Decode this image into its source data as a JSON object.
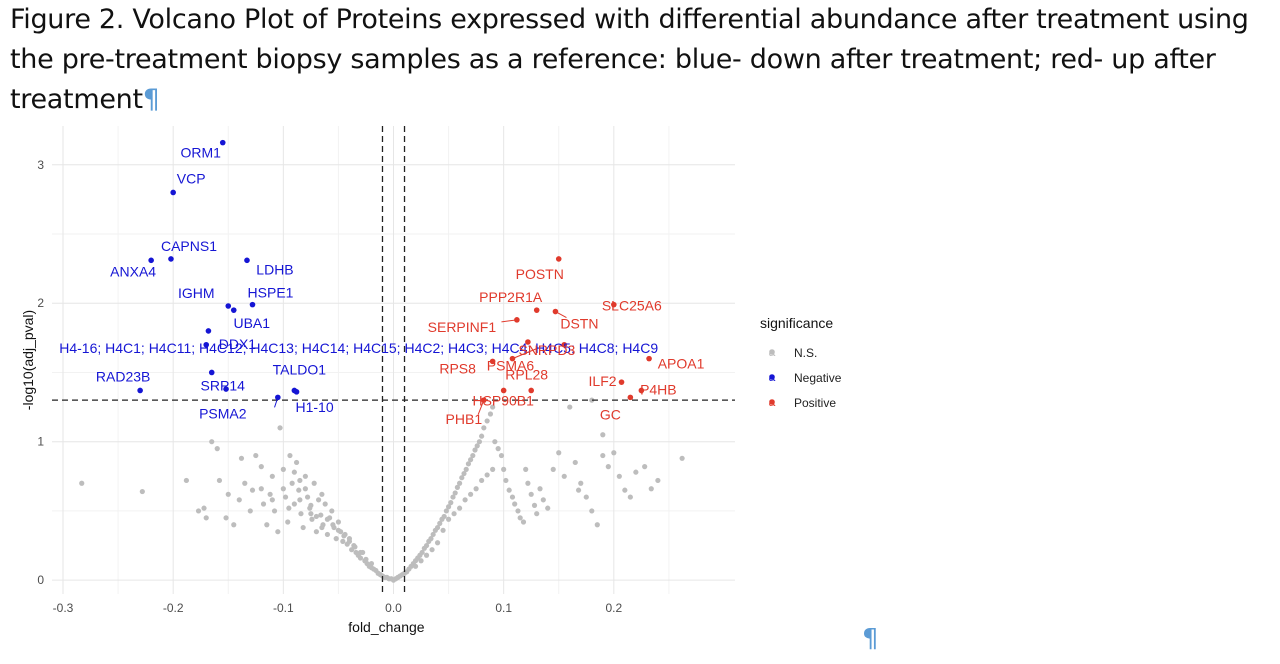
{
  "caption": {
    "text": "Figure 2. Volcano Plot of Proteins expressed with differential abundance after treatment using the pre-treatment biopsy samples as a reference: blue- down after treatment; red- up after treatment",
    "pilcrow": "¶"
  },
  "end_pilcrow": "¶",
  "colors": {
    "ns": "#bdbdbd",
    "negative": "#1515d4",
    "positive": "#e03a2c"
  },
  "chart_data": {
    "type": "scatter",
    "xlabel": "fold_change",
    "ylabel": "-log10(adj_pval)",
    "xlim": [
      -0.3,
      0.3
    ],
    "ylim": [
      0,
      3.2
    ],
    "x_ticks": [
      -0.3,
      -0.2,
      -0.1,
      0,
      0.1,
      0.2
    ],
    "x_tick_labels": [
      "-0.3",
      "-0.2",
      "-0.1",
      "0.0",
      "0.1",
      "0.2"
    ],
    "y_ticks": [
      0,
      1,
      2,
      3
    ],
    "y_tick_labels": [
      "0",
      "1",
      "2",
      "3"
    ],
    "vlines": [
      -0.01,
      0.01
    ],
    "hline": 1.3,
    "grid": true,
    "legend": {
      "title": "significance",
      "placement": "right",
      "items": [
        {
          "label": "N.S.",
          "key": "ns",
          "glyph": "a"
        },
        {
          "label": "Negative",
          "key": "negative",
          "glyph": "a"
        },
        {
          "label": "Positive",
          "key": "positive",
          "glyph": "a"
        }
      ]
    },
    "negative": [
      {
        "label": "ORM1",
        "x": -0.155,
        "y": 3.16
      },
      {
        "label": "VCP",
        "x": -0.2,
        "y": 2.8
      },
      {
        "label": "CAPNS1",
        "x": -0.202,
        "y": 2.32
      },
      {
        "label": "ANXA4",
        "x": -0.22,
        "y": 2.31
      },
      {
        "label": "LDHB",
        "x": -0.133,
        "y": 2.31
      },
      {
        "label": "HSPE1",
        "x": -0.128,
        "y": 1.99
      },
      {
        "label": "UBA1",
        "x": -0.145,
        "y": 1.95
      },
      {
        "label": "IGHM",
        "x": -0.15,
        "y": 1.98
      },
      {
        "label": "DDX1",
        "x": -0.168,
        "y": 1.8
      },
      {
        "label": "H4-16; H4C1; H4C11; H4C12; H4C13; H4C14; H4C15; H4C2; H4C3; H4C4; H4C5; H4C8; H4C9",
        "x": -0.17,
        "y": 1.7
      },
      {
        "label": "SRP14",
        "x": -0.165,
        "y": 1.5
      },
      {
        "label": "RAD23B",
        "x": -0.23,
        "y": 1.37
      },
      {
        "label": "TALDO1",
        "x": -0.09,
        "y": 1.37
      },
      {
        "label": "H1-10",
        "x": -0.088,
        "y": 1.36
      },
      {
        "label": "PSMA2",
        "x": -0.105,
        "y": 1.32
      },
      {
        "label": "",
        "x": -0.152,
        "y": 1.38
      }
    ],
    "positive": [
      {
        "label": "POSTN",
        "x": 0.15,
        "y": 2.32
      },
      {
        "label": "SLC25A6",
        "x": 0.2,
        "y": 1.99
      },
      {
        "label": "PPP2R1A",
        "x": 0.13,
        "y": 1.95
      },
      {
        "label": "DSTN",
        "x": 0.147,
        "y": 1.94
      },
      {
        "label": "SERPINF1",
        "x": 0.112,
        "y": 1.88
      },
      {
        "label": "SNRPD3",
        "x": 0.122,
        "y": 1.72
      },
      {
        "label": "PSMA6",
        "x": 0.108,
        "y": 1.6
      },
      {
        "label": "APOA1",
        "x": 0.232,
        "y": 1.6
      },
      {
        "label": "RPS8",
        "x": 0.09,
        "y": 1.58
      },
      {
        "label": "ILF2",
        "x": 0.207,
        "y": 1.43
      },
      {
        "label": "RPL28",
        "x": 0.1,
        "y": 1.37
      },
      {
        "label": "P4HB",
        "x": 0.225,
        "y": 1.37
      },
      {
        "label": "HSP90B1",
        "x": 0.125,
        "y": 1.37
      },
      {
        "label": "PHB1",
        "x": 0.082,
        "y": 1.3
      },
      {
        "label": "GC",
        "x": 0.215,
        "y": 1.32
      },
      {
        "label": "",
        "x": 0.155,
        "y": 1.7
      }
    ],
    "ns": [
      [
        -0.283,
        0.7
      ],
      [
        -0.228,
        0.64
      ],
      [
        -0.188,
        0.72
      ],
      [
        -0.177,
        0.5
      ],
      [
        -0.172,
        0.52
      ],
      [
        -0.17,
        0.45
      ],
      [
        -0.165,
        1.0
      ],
      [
        -0.16,
        0.95
      ],
      [
        -0.152,
        0.45
      ],
      [
        -0.145,
        0.4
      ],
      [
        -0.138,
        0.88
      ],
      [
        -0.135,
        0.7
      ],
      [
        -0.13,
        0.5
      ],
      [
        -0.128,
        0.65
      ],
      [
        -0.125,
        0.9
      ],
      [
        -0.12,
        0.82
      ],
      [
        -0.118,
        0.55
      ],
      [
        -0.115,
        0.4
      ],
      [
        -0.112,
        0.62
      ],
      [
        -0.11,
        0.75
      ],
      [
        -0.108,
        0.5
      ],
      [
        -0.105,
        0.35
      ],
      [
        -0.103,
        1.1
      ],
      [
        -0.1,
        0.8
      ],
      [
        -0.098,
        0.6
      ],
      [
        -0.096,
        0.42
      ],
      [
        -0.094,
        0.9
      ],
      [
        -0.092,
        0.7
      ],
      [
        -0.09,
        0.55
      ],
      [
        -0.088,
        0.85
      ],
      [
        -0.086,
        0.65
      ],
      [
        -0.084,
        0.48
      ],
      [
        -0.082,
        0.38
      ],
      [
        -0.08,
        0.75
      ],
      [
        -0.078,
        0.6
      ],
      [
        -0.076,
        0.52
      ],
      [
        -0.074,
        0.44
      ],
      [
        -0.072,
        0.7
      ],
      [
        -0.07,
        0.35
      ],
      [
        -0.068,
        0.58
      ],
      [
        -0.066,
        0.47
      ],
      [
        -0.064,
        0.4
      ],
      [
        -0.062,
        0.55
      ],
      [
        -0.06,
        0.33
      ],
      [
        -0.058,
        0.45
      ],
      [
        -0.056,
        0.5
      ],
      [
        -0.054,
        0.38
      ],
      [
        -0.052,
        0.3
      ],
      [
        -0.05,
        0.42
      ],
      [
        -0.048,
        0.35
      ],
      [
        -0.046,
        0.28
      ],
      [
        -0.044,
        0.33
      ],
      [
        -0.042,
        0.26
      ],
      [
        -0.04,
        0.3
      ],
      [
        -0.038,
        0.22
      ],
      [
        -0.036,
        0.25
      ],
      [
        -0.034,
        0.2
      ],
      [
        -0.032,
        0.18
      ],
      [
        -0.03,
        0.16
      ],
      [
        -0.028,
        0.2
      ],
      [
        -0.026,
        0.14
      ],
      [
        -0.024,
        0.12
      ],
      [
        -0.022,
        0.1
      ],
      [
        -0.02,
        0.09
      ],
      [
        -0.018,
        0.08
      ],
      [
        -0.016,
        0.07
      ],
      [
        -0.014,
        0.05
      ],
      [
        -0.012,
        0.04
      ],
      [
        -0.01,
        0.03
      ],
      [
        -0.008,
        0.02
      ],
      [
        -0.006,
        0.02
      ],
      [
        -0.004,
        0.01
      ],
      [
        -0.002,
        0.01
      ],
      [
        0.0,
        0.0
      ],
      [
        0.002,
        0.01
      ],
      [
        0.004,
        0.02
      ],
      [
        0.006,
        0.03
      ],
      [
        0.008,
        0.04
      ],
      [
        0.01,
        0.05
      ],
      [
        0.012,
        0.06
      ],
      [
        0.014,
        0.08
      ],
      [
        0.016,
        0.1
      ],
      [
        0.018,
        0.12
      ],
      [
        0.02,
        0.14
      ],
      [
        0.022,
        0.16
      ],
      [
        0.024,
        0.18
      ],
      [
        0.026,
        0.2
      ],
      [
        0.028,
        0.23
      ],
      [
        0.03,
        0.25
      ],
      [
        0.032,
        0.28
      ],
      [
        0.034,
        0.3
      ],
      [
        0.036,
        0.33
      ],
      [
        0.038,
        0.36
      ],
      [
        0.04,
        0.38
      ],
      [
        0.042,
        0.41
      ],
      [
        0.044,
        0.44
      ],
      [
        0.046,
        0.46
      ],
      [
        0.048,
        0.5
      ],
      [
        0.05,
        0.53
      ],
      [
        0.052,
        0.56
      ],
      [
        0.054,
        0.6
      ],
      [
        0.056,
        0.63
      ],
      [
        0.058,
        0.67
      ],
      [
        0.06,
        0.7
      ],
      [
        0.062,
        0.74
      ],
      [
        0.064,
        0.77
      ],
      [
        0.066,
        0.8
      ],
      [
        0.068,
        0.84
      ],
      [
        0.07,
        0.87
      ],
      [
        0.072,
        0.9
      ],
      [
        0.074,
        0.94
      ],
      [
        0.076,
        0.97
      ],
      [
        0.078,
        1.0
      ],
      [
        0.08,
        1.04
      ],
      [
        0.082,
        1.1
      ],
      [
        0.085,
        1.15
      ],
      [
        0.088,
        1.2
      ],
      [
        0.09,
        1.25
      ],
      [
        0.092,
        1.0
      ],
      [
        0.095,
        0.95
      ],
      [
        0.098,
        0.9
      ],
      [
        0.1,
        0.8
      ],
      [
        0.102,
        0.72
      ],
      [
        0.105,
        0.65
      ],
      [
        0.108,
        0.6
      ],
      [
        0.11,
        0.55
      ],
      [
        0.113,
        0.5
      ],
      [
        0.115,
        0.45
      ],
      [
        0.118,
        0.42
      ],
      [
        0.12,
        0.8
      ],
      [
        0.122,
        0.7
      ],
      [
        0.125,
        0.62
      ],
      [
        0.128,
        0.54
      ],
      [
        0.13,
        0.48
      ],
      [
        0.133,
        0.66
      ],
      [
        0.136,
        0.58
      ],
      [
        0.14,
        0.52
      ],
      [
        0.145,
        0.8
      ],
      [
        0.15,
        0.92
      ],
      [
        0.155,
        0.75
      ],
      [
        0.16,
        1.25
      ],
      [
        0.165,
        0.85
      ],
      [
        0.17,
        0.7
      ],
      [
        0.175,
        0.6
      ],
      [
        0.18,
        0.5
      ],
      [
        0.185,
        0.4
      ],
      [
        0.19,
        0.9
      ],
      [
        0.195,
        0.82
      ],
      [
        0.2,
        0.92
      ],
      [
        0.205,
        0.75
      ],
      [
        0.21,
        0.65
      ],
      [
        0.215,
        0.6
      ],
      [
        0.22,
        0.78
      ],
      [
        0.228,
        0.82
      ],
      [
        0.234,
        0.66
      ],
      [
        0.24,
        0.72
      ],
      [
        0.262,
        0.88
      ],
      [
        0.18,
        1.3
      ],
      [
        0.19,
        1.05
      ],
      [
        0.168,
        0.65
      ],
      [
        -0.14,
        0.58
      ],
      [
        -0.15,
        0.62
      ],
      [
        -0.158,
        0.72
      ],
      [
        -0.12,
        0.66
      ],
      [
        -0.11,
        0.58
      ],
      [
        -0.1,
        0.66
      ],
      [
        -0.095,
        0.52
      ],
      [
        -0.085,
        0.58
      ],
      [
        -0.075,
        0.48
      ],
      [
        -0.065,
        0.62
      ],
      [
        0.045,
        0.36
      ],
      [
        0.05,
        0.44
      ],
      [
        0.055,
        0.48
      ],
      [
        0.06,
        0.52
      ],
      [
        0.065,
        0.58
      ],
      [
        0.07,
        0.62
      ],
      [
        0.075,
        0.66
      ],
      [
        0.08,
        0.72
      ],
      [
        0.085,
        0.76
      ],
      [
        0.09,
        0.8
      ],
      [
        0.035,
        0.22
      ],
      [
        0.04,
        0.27
      ],
      [
        0.03,
        0.18
      ],
      [
        0.025,
        0.14
      ],
      [
        0.02,
        0.1
      ],
      [
        -0.02,
        0.12
      ],
      [
        -0.025,
        0.15
      ],
      [
        -0.03,
        0.2
      ],
      [
        -0.035,
        0.24
      ],
      [
        -0.04,
        0.28
      ],
      [
        -0.045,
        0.32
      ],
      [
        -0.05,
        0.36
      ],
      [
        -0.055,
        0.4
      ],
      [
        -0.06,
        0.44
      ],
      [
        -0.065,
        0.38
      ],
      [
        -0.07,
        0.46
      ],
      [
        -0.075,
        0.54
      ],
      [
        -0.08,
        0.66
      ],
      [
        -0.085,
        0.72
      ],
      [
        -0.09,
        0.78
      ]
    ]
  }
}
